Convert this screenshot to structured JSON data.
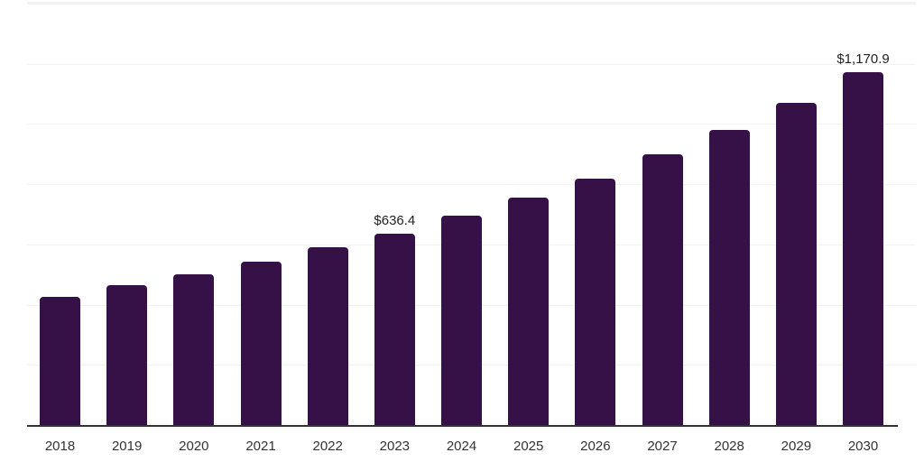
{
  "chart_data": {
    "type": "bar",
    "categories": [
      "2018",
      "2019",
      "2020",
      "2021",
      "2022",
      "2023",
      "2024",
      "2025",
      "2026",
      "2027",
      "2028",
      "2029",
      "2030"
    ],
    "values": [
      426.1,
      464.8,
      500.5,
      542.3,
      589.9,
      636.4,
      694.2,
      756.8,
      819.3,
      899.8,
      980.2,
      1069.6,
      1170.9
    ],
    "visible_value_labels": {
      "2023": "$636.4",
      "2030": "$1,170.9"
    },
    "ylim": [
      0,
      1400
    ],
    "gridline_step": 200,
    "grid": true,
    "y_axis_tick_labels_visible": false,
    "legend_position": "none",
    "colors": {
      "bar": "#351148",
      "gridline": "#f2f2f4",
      "axis_line": "#333333",
      "value_label_text": "#222222",
      "tick_label_text": "#333333",
      "background": "#ffffff"
    }
  }
}
